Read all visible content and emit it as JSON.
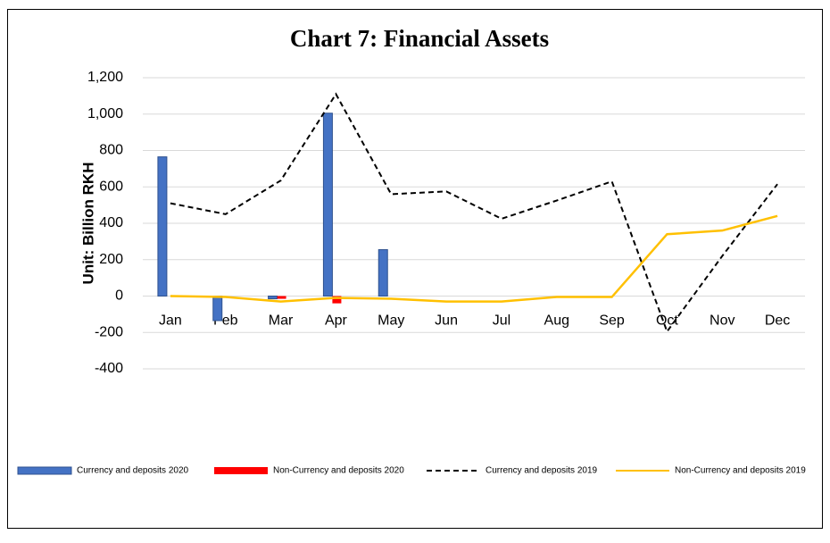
{
  "chart_data": {
    "type": "bar",
    "title": "Chart 7: Financial Assets",
    "y_label": "Unit: Billion RKH",
    "categories": [
      "Jan",
      "Feb",
      "Mar",
      "Apr",
      "May",
      "Jun",
      "Jul",
      "Aug",
      "Sep",
      "Oct",
      "Nov",
      "Dec"
    ],
    "series": [
      {
        "name": "Currency and deposits 2020",
        "type": "bar",
        "color": "#4472c4",
        "values": [
          765,
          -135,
          -15,
          1005,
          255,
          null,
          null,
          null,
          null,
          null,
          null,
          null
        ]
      },
      {
        "name": "Non-Currency and deposits 2020",
        "type": "bar",
        "color": "#ff0000",
        "values": [
          null,
          null,
          -15,
          -40,
          null,
          null,
          null,
          null,
          null,
          null,
          null,
          null
        ]
      },
      {
        "name": "Currency and deposits 2019",
        "type": "line",
        "dashed": true,
        "color": "#000000",
        "values": [
          510,
          450,
          635,
          1110,
          560,
          575,
          425,
          525,
          630,
          -195,
          220,
          615
        ]
      },
      {
        "name": "Non-Currency and deposits 2019",
        "type": "line",
        "color": "#ffc000",
        "values": [
          0,
          -5,
          -30,
          -10,
          -15,
          -30,
          -30,
          -5,
          -5,
          340,
          360,
          440
        ]
      }
    ],
    "ylim": [
      -400,
      1200
    ],
    "yticks": [
      -400,
      -200,
      0,
      200,
      400,
      600,
      800,
      {
        "value": 1000,
        "label": "1,000"
      },
      {
        "value": 1200,
        "label": "1,200"
      }
    ],
    "grid": true,
    "legend": "bottom"
  }
}
